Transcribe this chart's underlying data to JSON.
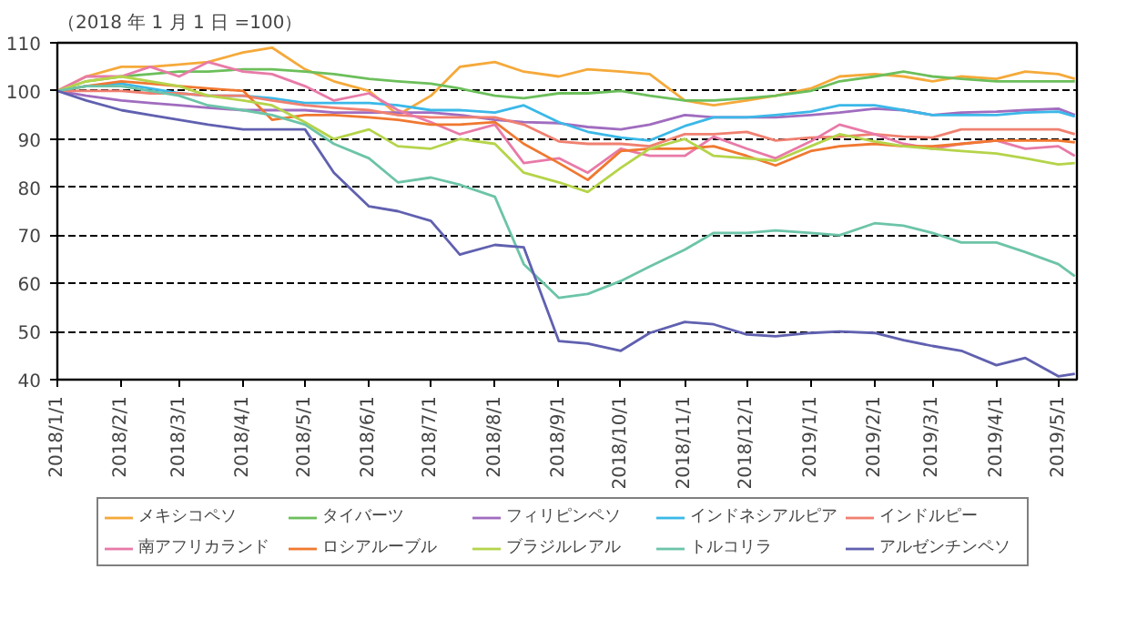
{
  "chart_data": {
    "type": "line",
    "ylabel": "（2018 年 1 月 1 日 =100）",
    "x": [
      "2018-01-01",
      "2018-01-15",
      "2018-02-01",
      "2018-02-15",
      "2018-03-01",
      "2018-03-15",
      "2018-04-01",
      "2018-04-15",
      "2018-05-01",
      "2018-05-15",
      "2018-06-01",
      "2018-06-15",
      "2018-07-01",
      "2018-07-15",
      "2018-08-01",
      "2018-08-15",
      "2018-09-01",
      "2018-09-15",
      "2018-10-01",
      "2018-10-15",
      "2018-11-01",
      "2018-11-15",
      "2018-12-01",
      "2018-12-15",
      "2019-01-01",
      "2019-01-15",
      "2019-02-01",
      "2019-02-15",
      "2019-03-01",
      "2019-03-15",
      "2019-04-01",
      "2019-04-15",
      "2019-05-01",
      "2019-05-09"
    ],
    "xlim": [
      "2018-01-01",
      "2019-05-10"
    ],
    "xticks": [
      {
        "value": "2018-01-01",
        "label": "2018/1/1"
      },
      {
        "value": "2018-02-01",
        "label": "2018/2/1"
      },
      {
        "value": "2018-03-01",
        "label": "2018/3/1"
      },
      {
        "value": "2018-04-01",
        "label": "2018/4/1"
      },
      {
        "value": "2018-05-01",
        "label": "2018/5/1"
      },
      {
        "value": "2018-06-01",
        "label": "2018/6/1"
      },
      {
        "value": "2018-07-01",
        "label": "2018/7/1"
      },
      {
        "value": "2018-08-01",
        "label": "2018/8/1"
      },
      {
        "value": "2018-09-01",
        "label": "2018/9/1"
      },
      {
        "value": "2018-10-01",
        "label": "2018/10/1"
      },
      {
        "value": "2018-11-01",
        "label": "2018/11/1"
      },
      {
        "value": "2018-12-01",
        "label": "2018/12/1"
      },
      {
        "value": "2019-01-01",
        "label": "2019/1/1"
      },
      {
        "value": "2019-02-01",
        "label": "2019/2/1"
      },
      {
        "value": "2019-03-01",
        "label": "2019/3/1"
      },
      {
        "value": "2019-04-01",
        "label": "2019/4/1"
      },
      {
        "value": "2019-05-01",
        "label": "2019/5/1"
      }
    ],
    "ylim": [
      40,
      110
    ],
    "yticks": [
      40,
      50,
      60,
      70,
      80,
      90,
      100,
      110
    ],
    "grid": "y",
    "legend": "bottom",
    "series": [
      {
        "name": "メキシコペソ",
        "color": "#f5a93a",
        "values": [
          100,
          103,
          105,
          105,
          105.5,
          106,
          108,
          109,
          104.5,
          102,
          100,
          95,
          99,
          105,
          106,
          104,
          103,
          104.5,
          104,
          103.5,
          98,
          97,
          98,
          99,
          100.5,
          103,
          103.5,
          103,
          102,
          103,
          102.5,
          104,
          103.5,
          102.5
        ]
      },
      {
        "name": "タイバーツ",
        "color": "#6cbf5b",
        "values": [
          100,
          102,
          103,
          103.5,
          104,
          104,
          104.5,
          104.5,
          104,
          103.5,
          102.5,
          102,
          101.5,
          100.5,
          99,
          98.5,
          99.5,
          99.5,
          100,
          99,
          98,
          98,
          98.5,
          99,
          100,
          102,
          103,
          104,
          103,
          102.5,
          102,
          102,
          102,
          102
        ]
      },
      {
        "name": "フィリピンペソ",
        "color": "#a06cbf",
        "values": [
          100,
          99,
          98,
          97.5,
          97,
          96.5,
          96,
          96,
          96,
          95.5,
          95.5,
          95.5,
          95.5,
          95,
          94,
          93.5,
          93.3,
          92.5,
          92,
          93,
          95,
          94.5,
          94.5,
          94.5,
          95,
          95.5,
          96.3,
          96,
          95,
          95.5,
          95.7,
          96,
          96.3,
          95
        ]
      },
      {
        "name": "インドネシアルピア",
        "color": "#3bb8e8",
        "values": [
          100,
          101,
          101.5,
          100.5,
          99.5,
          99,
          99,
          98.5,
          97.5,
          97.5,
          97.5,
          97,
          96,
          96,
          95.5,
          97,
          93.5,
          91.5,
          90.3,
          89.7,
          92.7,
          94.5,
          94.5,
          95,
          95.7,
          97,
          97,
          96,
          95,
          95,
          95,
          95.5,
          95.7,
          94.7
        ]
      },
      {
        "name": "インドルピー",
        "color": "#f08070",
        "values": [
          100,
          100,
          100,
          99.5,
          99.5,
          99,
          99,
          98,
          97,
          96.5,
          96,
          95,
          94.5,
          94.5,
          94.5,
          93,
          89.5,
          89,
          89,
          88.5,
          91,
          91,
          91.5,
          89.7,
          90.3,
          90.5,
          91,
          90.5,
          90.3,
          92,
          92,
          92,
          92,
          91
        ]
      },
      {
        "name": "南アフリカランド",
        "color": "#e87aa8",
        "values": [
          100,
          103,
          103,
          105,
          103,
          106,
          104,
          103.5,
          101,
          98,
          99.5,
          96,
          93.5,
          91,
          93,
          85,
          86,
          83,
          88,
          86.5,
          86.5,
          90.5,
          88,
          86,
          89.5,
          93,
          91,
          89,
          88,
          89,
          89.7,
          88,
          88.5,
          86.5
        ]
      },
      {
        "name": "ロシアルーブル",
        "color": "#f07830",
        "values": [
          100,
          101,
          102,
          101.5,
          101,
          100.5,
          100,
          94,
          95,
          95,
          94.5,
          94,
          93,
          93,
          93.5,
          89,
          85,
          81.5,
          87.5,
          88,
          88,
          88.5,
          86.5,
          84.5,
          87.5,
          88.5,
          89,
          88.5,
          88.5,
          89,
          89.7,
          89.7,
          89.7,
          89.3
        ]
      },
      {
        "name": "ブラジルレアル",
        "color": "#b5d44a",
        "values": [
          100,
          102,
          103,
          102,
          101,
          99,
          98,
          97,
          93.5,
          90,
          92,
          88.5,
          88,
          90,
          89,
          83,
          81,
          79,
          84,
          88,
          90,
          86.5,
          86,
          85.5,
          88.5,
          91,
          89.5,
          88.5,
          88,
          87.5,
          87,
          86,
          84.7,
          85
        ]
      },
      {
        "name": "トルコリラ",
        "color": "#6cc4a8",
        "values": [
          100,
          101,
          101,
          100,
          99,
          97,
          96,
          95,
          93,
          89,
          86,
          81,
          82,
          80.5,
          78,
          64,
          57,
          57.8,
          60.5,
          63.5,
          67,
          70.5,
          70.5,
          71,
          70.5,
          70,
          72.5,
          72,
          70.5,
          68.5,
          68.5,
          66.5,
          64,
          61.5
        ]
      },
      {
        "name": "アルゼンチンペソ",
        "color": "#6060b0",
        "values": [
          100,
          98,
          96,
          95,
          94,
          93,
          92,
          92,
          92,
          83,
          76,
          75,
          73,
          66,
          68,
          67.5,
          48,
          47.5,
          46,
          49.7,
          52,
          51.5,
          49.4,
          49,
          49.7,
          50,
          49.7,
          48.2,
          47,
          46,
          43,
          44.5,
          40.7,
          41.2
        ]
      }
    ]
  }
}
